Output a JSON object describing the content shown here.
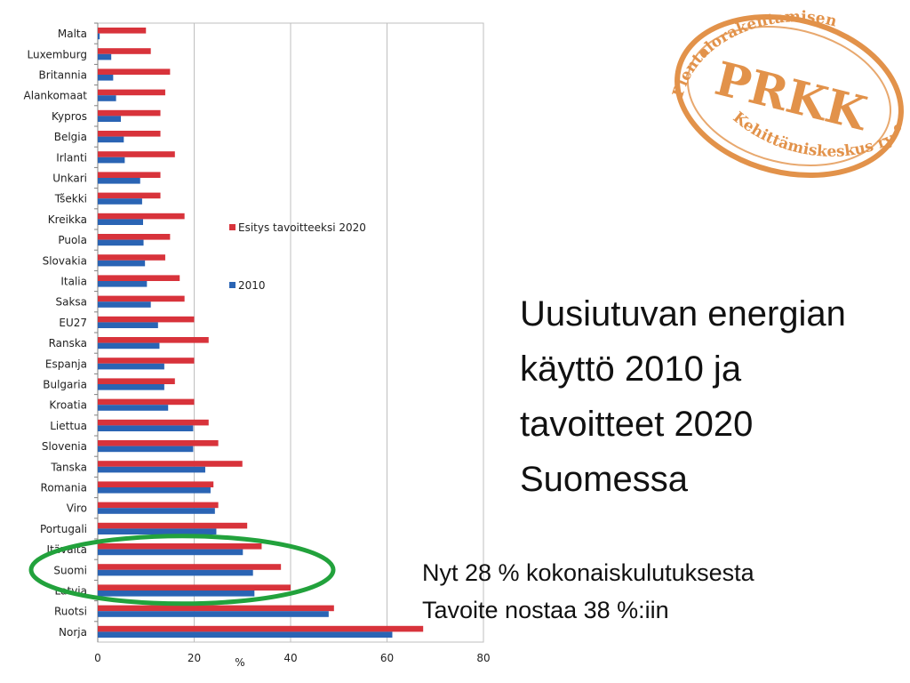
{
  "slide": {
    "title": "Uusiutuvan energian käyttö 2010 ja tavoitteet 2020 Suomessa",
    "notes": [
      "Nyt 28 % kokonaiskulutuksesta",
      "Tavoite nostaa 38 %:iin"
    ]
  },
  "logo": {
    "abbr": "PRKK",
    "arc_text": "Pientalorakentamisen Kehittämiskeskus ry",
    "color": "#e2924a"
  },
  "highlight": {
    "category": "Suomi",
    "color": "#22a23c"
  },
  "chart_data": {
    "type": "bar",
    "orientation": "horizontal",
    "categories": [
      "Malta",
      "Luxemburg",
      "Britannia",
      "Alankomaat",
      "Kypros",
      "Belgia",
      "Irlanti",
      "Unkari",
      "Tšekki",
      "Kreikka",
      "Puola",
      "Slovakia",
      "Italia",
      "Saksa",
      "EU27",
      "Ranska",
      "Espanja",
      "Bulgaria",
      "Kroatia",
      "Liettua",
      "Slovenia",
      "Tanska",
      "Romania",
      "Viro",
      "Portugali",
      "Itävalta",
      "Suomi",
      "Latvia",
      "Ruotsi",
      "Norja"
    ],
    "series": [
      {
        "name": "Esitys tavoitteeksi 2020",
        "color": "#d8333b",
        "values": [
          10,
          11,
          15,
          14,
          13,
          13,
          16,
          13,
          13,
          18,
          15,
          14,
          17,
          18,
          20,
          23,
          20,
          16,
          20,
          23,
          25,
          30,
          24,
          25,
          31,
          34,
          38,
          40,
          49,
          67.5
        ]
      },
      {
        "name": "2010",
        "color": "#2a64b4",
        "values": [
          0.4,
          2.8,
          3.2,
          3.8,
          4.8,
          5.4,
          5.6,
          8.8,
          9.2,
          9.4,
          9.5,
          9.8,
          10.2,
          11,
          12.5,
          12.8,
          13.8,
          13.8,
          14.6,
          19.8,
          19.8,
          22.3,
          23.4,
          24.3,
          24.6,
          30.1,
          32.2,
          32.5,
          47.9,
          61.1
        ]
      }
    ],
    "xlabel": "%",
    "xlim": [
      0,
      80
    ],
    "xticks": [
      0,
      20,
      40,
      60,
      80
    ],
    "grid": true,
    "legend_position": "right"
  }
}
